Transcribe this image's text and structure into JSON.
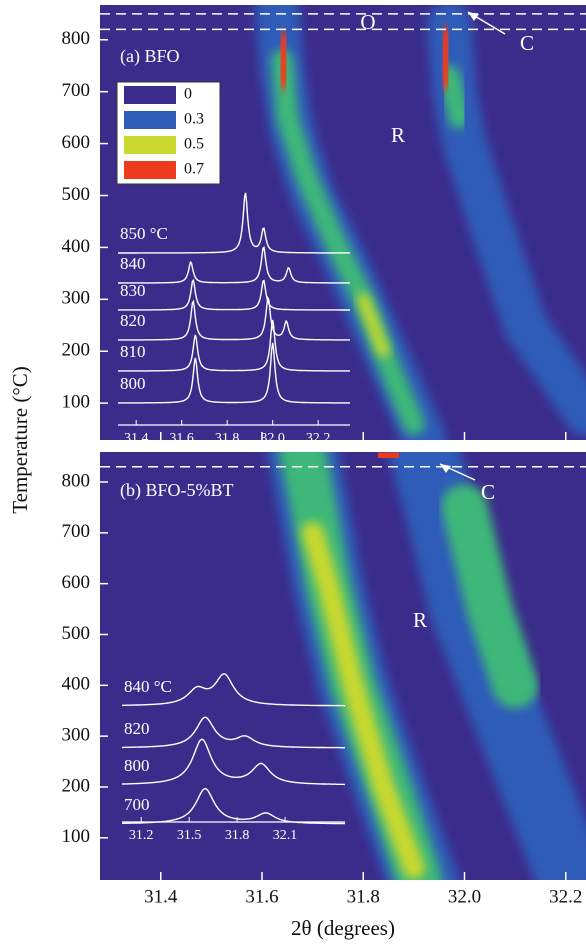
{
  "chart_data": [
    {
      "type": "contour",
      "title": "(a) BFO",
      "ylabel": "Temperature (°C)",
      "xlim": [
        31.28,
        32.24
      ],
      "xticks": [
        31.4,
        31.6,
        31.8,
        {
          "value": 32,
          "label": "32.0"
        },
        32.2
      ],
      "ylim": [
        29,
        867
      ],
      "yticks": [
        100,
        200,
        300,
        400,
        500,
        600,
        700,
        800
      ],
      "dashed_lines": [
        850,
        820
      ],
      "annotations": [
        "O",
        "C",
        "R"
      ],
      "legend": {
        "levels": [
          0,
          0.3,
          0.5,
          0.7
        ],
        "colors": [
          "#3b2c8c",
          "#2f5cb8",
          "#c9d92e",
          "#ee3b1e"
        ]
      },
      "ridges": [
        {
          "color": "#2f5cb8",
          "x": [
            31.92,
            31.88,
            31.82,
            31.76,
            31.7,
            31.66,
            31.64,
            31.63
          ],
          "y": [
            30,
            120,
            250,
            380,
            500,
            620,
            740,
            860
          ]
        },
        {
          "color": "#2f5cb8",
          "x": [
            32.24,
            32.12,
            32.05,
            32.0,
            31.98,
            31.97
          ],
          "y": [
            80,
            250,
            450,
            600,
            700,
            830
          ]
        },
        {
          "color": "#3cb878",
          "x": [
            31.9,
            31.86,
            31.8,
            31.74,
            31.69,
            31.65,
            31.64
          ],
          "y": [
            60,
            150,
            300,
            420,
            530,
            650,
            760
          ]
        },
        {
          "color": "#3cb878",
          "x": [
            31.99,
            31.97
          ],
          "y": [
            650,
            730
          ]
        },
        {
          "color": "#c9d92e",
          "x": [
            31.84,
            31.8
          ],
          "y": [
            200,
            300
          ]
        },
        {
          "color": "#ee3b1e",
          "x": [
            31.64,
            31.645
          ],
          "y": [
            720,
            800
          ]
        },
        {
          "color": "#ee3b1e",
          "x": [
            31.96,
            31.965
          ],
          "y": [
            720,
            810
          ]
        }
      ],
      "inset": {
        "type": "line",
        "xlim": [
          31.32,
          32.34
        ],
        "xticks": [
          31.4,
          31.6,
          31.8,
          {
            "value": 32,
            "label": "32.0"
          },
          32.2
        ],
        "patterns": [
          {
            "label": "850 °C",
            "peaks": [
              [
                31.88,
                1
              ],
              [
                31.96,
                0.4
              ]
            ]
          },
          {
            "label": "840",
            "peaks": [
              [
                31.64,
                0.35
              ],
              [
                31.96,
                0.6
              ],
              [
                32.07,
                0.25
              ]
            ]
          },
          {
            "label": "830",
            "peaks": [
              [
                31.65,
                0.5
              ],
              [
                31.96,
                0.5
              ]
            ]
          },
          {
            "label": "820",
            "peaks": [
              [
                31.65,
                0.65
              ],
              [
                31.98,
                0.7
              ],
              [
                32.06,
                0.3
              ]
            ]
          },
          {
            "label": "810",
            "peaks": [
              [
                31.66,
                0.6
              ],
              [
                32.0,
                0.85
              ]
            ]
          },
          {
            "label": "800",
            "peaks": [
              [
                31.66,
                0.75
              ],
              [
                32.0,
                1
              ]
            ]
          }
        ]
      }
    },
    {
      "type": "contour",
      "title": "(b) BFO-5%BT",
      "xlabel": "2θ (degrees)",
      "xlim": [
        31.28,
        32.24
      ],
      "xticks": [
        31.4,
        31.6,
        31.8,
        {
          "value": 32,
          "label": "32.0"
        },
        32.2
      ],
      "ylim": [
        17,
        859
      ],
      "yticks": [
        100,
        200,
        300,
        400,
        500,
        600,
        700,
        800
      ],
      "dashed_lines": [
        830
      ],
      "annotations": [
        "C",
        "R"
      ],
      "ridges": [
        {
          "color": "#2f5cb8",
          "x": [
            31.92,
            31.85,
            31.78,
            31.73,
            31.7,
            31.68
          ],
          "y": [
            10,
            200,
            400,
            600,
            760,
            860
          ]
        },
        {
          "color": "#2f5cb8",
          "x": [
            32.2,
            32.1,
            32.0,
            31.95,
            31.92
          ],
          "y": [
            50,
            300,
            550,
            750,
            860
          ]
        },
        {
          "color": "#3cb878",
          "x": [
            31.91,
            31.85,
            31.78,
            31.73,
            31.7,
            31.68
          ],
          "y": [
            20,
            200,
            400,
            600,
            760,
            860
          ]
        },
        {
          "color": "#3cb878",
          "x": [
            32.1,
            32.05,
            32.0
          ],
          "y": [
            400,
            550,
            750
          ]
        },
        {
          "color": "#c9d92e",
          "x": [
            31.9,
            31.84,
            31.78,
            31.73,
            31.7
          ],
          "y": [
            40,
            200,
            400,
            600,
            700
          ]
        },
        {
          "color": "#ee3b1e",
          "x": [
            31.68,
            31.68
          ],
          "y": [
            700,
            800
          ]
        },
        {
          "color": "#ee3b1e",
          "x": [
            31.84,
            31.86
          ],
          "y": [
            850,
            855
          ]
        }
      ],
      "inset": {
        "type": "line",
        "xlim": [
          31.08,
          32.475
        ],
        "xticks": [
          31.2,
          31.5,
          31.8,
          32.1
        ],
        "patterns": [
          {
            "label": "840 °C",
            "peaks": [
              [
                31.55,
                0.3
              ],
              [
                31.72,
                0.6
              ]
            ]
          },
          {
            "label": "820",
            "peaks": [
              [
                31.6,
                0.6
              ],
              [
                31.85,
                0.2
              ]
            ]
          },
          {
            "label": "800",
            "peaks": [
              [
                31.58,
                0.9
              ],
              [
                31.95,
                0.4
              ]
            ]
          },
          {
            "label": "700",
            "peaks": [
              [
                31.6,
                0.7
              ],
              [
                31.98,
                0.2
              ]
            ]
          }
        ]
      }
    }
  ]
}
